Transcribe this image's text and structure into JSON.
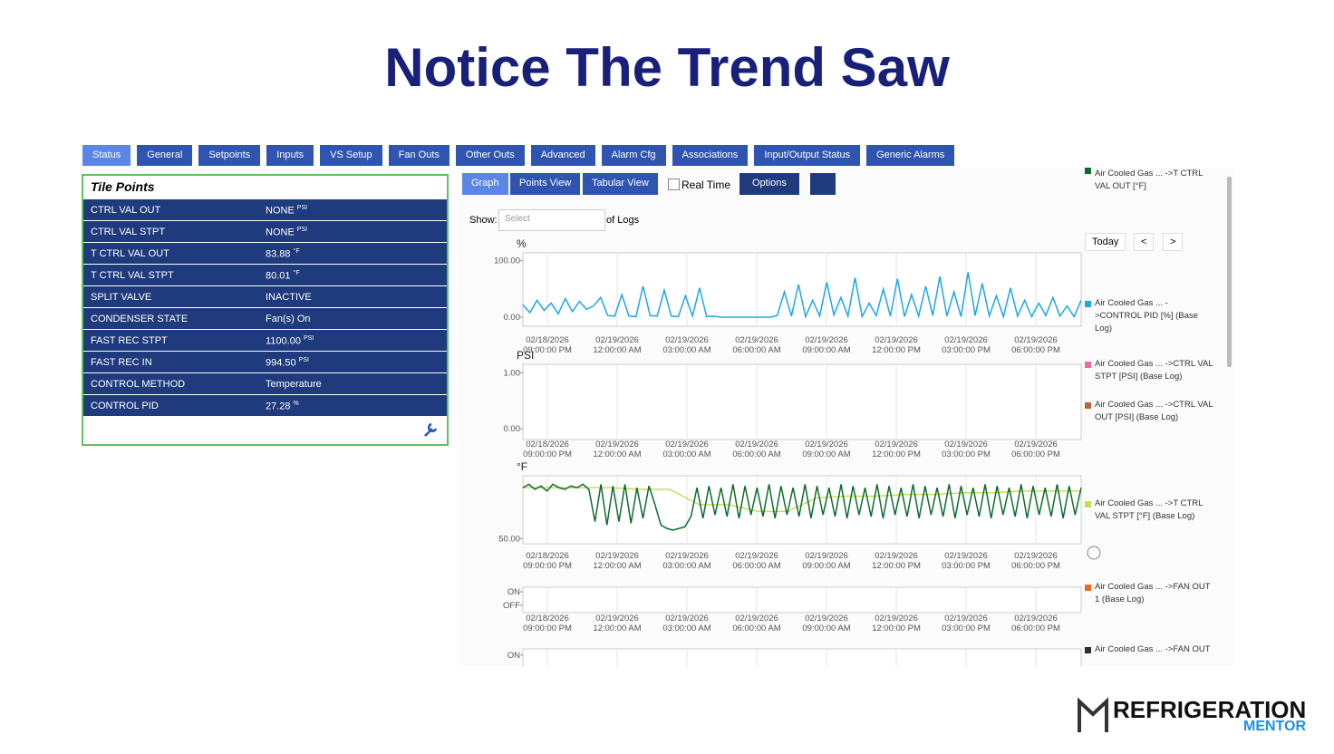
{
  "title": "Notice The Trend Saw",
  "tabs": [
    "Status",
    "General",
    "Setpoints",
    "Inputs",
    "VS Setup",
    "Fan Outs",
    "Other Outs",
    "Advanced",
    "Alarm Cfg",
    "Associations",
    "Input/Output Status",
    "Generic Alarms"
  ],
  "tile_points": {
    "title": "Tile Points",
    "rows": [
      {
        "name": "CTRL VAL OUT",
        "value": "NONE",
        "unit": "PSI"
      },
      {
        "name": "CTRL VAL STPT",
        "value": "NONE",
        "unit": "PSI"
      },
      {
        "name": "T CTRL VAL OUT",
        "value": "83.88",
        "unit": "°F"
      },
      {
        "name": "T CTRL VAL STPT",
        "value": "80.01",
        "unit": "°F"
      },
      {
        "name": "SPLIT VALVE",
        "value": "INACTIVE"
      },
      {
        "name": "CONDENSER STATE",
        "value": "Fan(s) On"
      },
      {
        "name": "FAST REC STPT",
        "value": "1100.00",
        "unit": "PSI"
      },
      {
        "name": "FAST REC IN",
        "value": "994.50",
        "unit": "PSI"
      },
      {
        "name": "CONTROL METHOD",
        "value": "Temperature"
      },
      {
        "name": "CONTROL PID",
        "value": "27.28",
        "unit": "%"
      }
    ]
  },
  "toolbar": {
    "views": [
      "Graph",
      "Points View",
      "Tabular View"
    ],
    "realtime": "Real Time",
    "options": "Options"
  },
  "show": {
    "label": "Show:",
    "select": "Select",
    "suffix": "of Logs"
  },
  "nav": [
    "Today",
    "<",
    ">"
  ],
  "x_labels": [
    {
      "date": "02/18/2026",
      "time": "09:00:00 PM"
    },
    {
      "date": "02/19/2026",
      "time": "12:00:00 AM"
    },
    {
      "date": "02/19/2026",
      "time": "03:00:00 AM"
    },
    {
      "date": "02/19/2026",
      "time": "06:00:00 AM"
    },
    {
      "date": "02/19/2026",
      "time": "09:00:00 AM"
    },
    {
      "date": "02/19/2026",
      "time": "12:00:00 PM"
    },
    {
      "date": "02/19/2026",
      "time": "03:00:00 PM"
    },
    {
      "date": "02/19/2026",
      "time": "06:00:00 PM"
    }
  ],
  "charts": [
    {
      "unit": "%",
      "ylim": [
        -16,
        114
      ],
      "yticks": [
        {
          "value": 100,
          "label": "100.00"
        },
        {
          "value": 0,
          "label": "0.00"
        }
      ],
      "series": [
        {
          "name": "Air Cooled Gas ... ->CONTROL PID [%] (Base Log)",
          "color": "#1ea7e8",
          "values": [
            22,
            8,
            30,
            12,
            25,
            6,
            33,
            10,
            28,
            14,
            20,
            35,
            3,
            2,
            40,
            2,
            1,
            55,
            3,
            2,
            48,
            2,
            1,
            38,
            2,
            52,
            1,
            2,
            0,
            0,
            0,
            0,
            0,
            0,
            0,
            0,
            3,
            45,
            2,
            58,
            1,
            30,
            2,
            62,
            4,
            35,
            2,
            70,
            1,
            25,
            3,
            50,
            2,
            68,
            1,
            40,
            2,
            55,
            3,
            72,
            2,
            45,
            1,
            80,
            3,
            60,
            2,
            38,
            1,
            52,
            2,
            30,
            1,
            25,
            3,
            35,
            2,
            20,
            1,
            30
          ]
        }
      ]
    },
    {
      "unit": "PSI",
      "ylim": [
        -0.19,
        1.15
      ],
      "yticks": [
        {
          "value": 1,
          "label": "1.00"
        },
        {
          "value": 0,
          "label": "0.00"
        }
      ],
      "series": [
        {
          "name": "Air Cooled Gas ... ->CTRL VAL STPT [PSI] (Base Log)",
          "color": "#f06aa0",
          "values": []
        },
        {
          "name": "Air Cooled Gas ... ->CTRL VAL OUT [PSI] (Base Log)",
          "color": "#b5653a",
          "values": []
        }
      ]
    },
    {
      "unit": "°F",
      "ylim": [
        47,
        87
      ],
      "yticks": [
        {
          "value": 50,
          "label": "50.00"
        }
      ],
      "series": [
        {
          "name": "Air Cooled Gas ... ->T CTRL VAL STPT [°F] (Base Log)",
          "color": "#c9dc5a",
          "values": [
            80,
            80,
            80,
            80,
            79,
            79,
            70,
            70,
            66,
            66,
            74,
            75,
            75,
            76,
            76,
            77,
            77,
            78,
            78,
            78
          ]
        },
        {
          "name": "Air Cooled Gas ... ->T CTRL VAL OUT [°F]",
          "color": "#0f6b2d",
          "values": [
            80,
            82,
            79,
            81,
            78,
            82,
            80,
            79,
            81,
            80,
            82,
            79,
            60,
            82,
            58,
            81,
            60,
            82,
            59,
            80,
            62,
            81,
            70,
            58,
            56,
            55,
            56,
            57,
            63,
            80,
            62,
            81,
            64,
            80,
            63,
            82,
            62,
            81,
            64,
            80,
            63,
            82,
            62,
            81,
            64,
            80,
            63,
            82,
            62,
            81,
            64,
            80,
            63,
            82,
            62,
            81,
            64,
            80,
            63,
            82,
            62,
            81,
            64,
            80,
            63,
            82,
            62,
            81,
            64,
            80,
            63,
            82,
            62,
            81,
            64,
            80,
            63,
            82,
            62,
            81,
            64,
            80,
            63,
            82,
            62,
            81,
            64,
            80,
            63,
            82,
            62,
            81,
            64,
            80
          ]
        }
      ]
    },
    {
      "unit": "",
      "ylim": [
        -0.53,
        1.33
      ],
      "yticks": [
        {
          "value": 1,
          "label": "ON"
        },
        {
          "value": 0,
          "label": "OFF"
        }
      ],
      "series": [
        {
          "name": "Air Cooled Gas ... ->FAN OUT 1 (Base Log)",
          "color": "#f06a1e",
          "values": []
        }
      ]
    },
    {
      "unit": "",
      "ylim": [
        -0.53,
        1.33
      ],
      "yticks": [
        {
          "value": 1,
          "label": "ON"
        }
      ],
      "series": [
        {
          "name": "Air Cooled Gas ... ->FAN OUT",
          "color": "#2a2f3a",
          "values": []
        }
      ]
    }
  ],
  "logo": {
    "top": "REFRIGERATION",
    "bottom": "MENTOR"
  }
}
